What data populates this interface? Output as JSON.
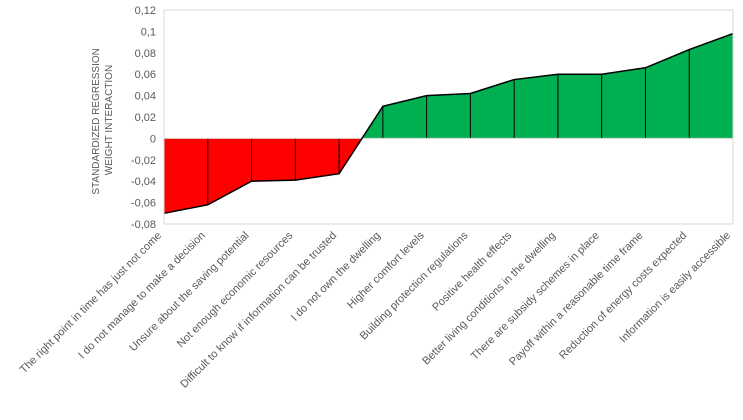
{
  "chart_data": {
    "type": "area",
    "ylabel_lines": [
      "STANDARDIZED REGRESSION",
      "WEIGHT INTERACTION"
    ],
    "ylim": [
      -0.08,
      0.12
    ],
    "yticks": [
      "-0,08",
      "-0,06",
      "-0,04",
      "-0,02",
      "0",
      "0,02",
      "0,04",
      "0,06",
      "0,08",
      "0,1",
      "0,12"
    ],
    "grid": false,
    "categories": [
      "The right point in time has just not come",
      "I do not manage to make a decision",
      "Unsure about the saving potential",
      "Not enough economic resources",
      "Difficult to know if information can be trusted",
      "I do not own the dwelling",
      "Higher comfort levels",
      "Building protection regulations",
      "Positive health effects",
      "Better living conditions in the dwelling",
      "There are subsidy schemes in place",
      "Payoff within a reasonable time frame",
      "Reduction of energy costs expected",
      "Information is easily accessible"
    ],
    "values": [
      -0.07,
      -0.062,
      -0.04,
      -0.039,
      -0.033,
      0.03,
      0.04,
      0.042,
      0.055,
      0.06,
      0.06,
      0.066,
      0.083,
      0.098
    ],
    "colors": {
      "negative": "#ff0000",
      "positive": "#00b050",
      "line": "#000000",
      "axis": "#d9d9d9"
    }
  }
}
